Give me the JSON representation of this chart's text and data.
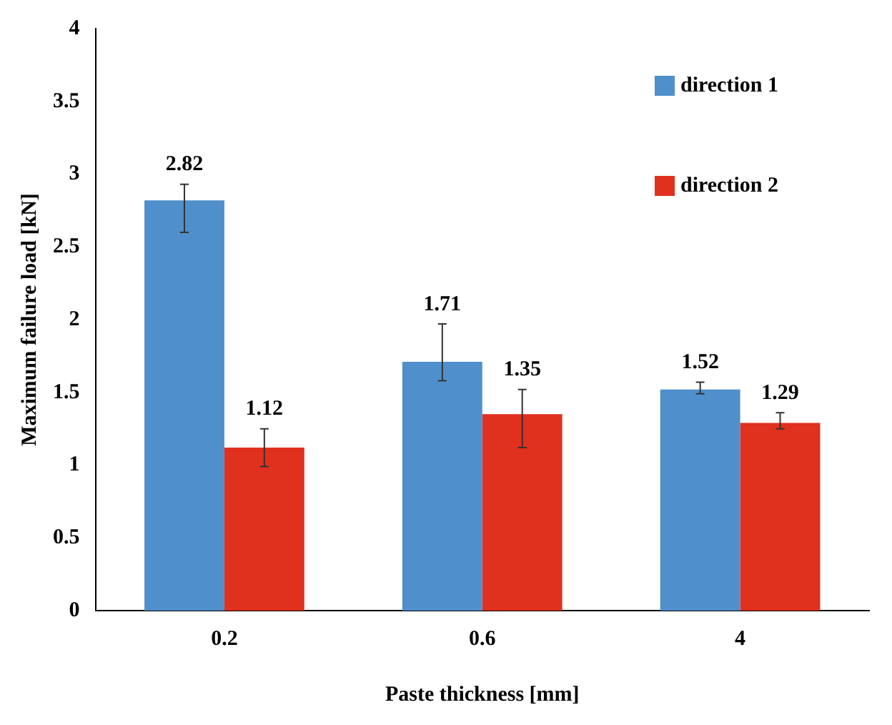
{
  "chart_data": {
    "type": "bar",
    "xlabel": "Paste thickness [mm]",
    "ylabel": "Maximum failure load [kN]",
    "categories": [
      "0.2",
      "0.6",
      "4"
    ],
    "series": [
      {
        "name": "direction 1",
        "color": "#4f8fcb",
        "values": [
          2.82,
          1.71,
          1.52
        ],
        "errors": [
          [
            2.6,
            2.93
          ],
          [
            1.58,
            1.97
          ],
          [
            1.49,
            1.57
          ]
        ]
      },
      {
        "name": "direction 2",
        "color": "#e0301e",
        "values": [
          1.12,
          1.35,
          1.29
        ],
        "errors": [
          [
            0.99,
            1.25
          ],
          [
            1.12,
            1.52
          ],
          [
            1.25,
            1.36
          ]
        ]
      }
    ],
    "ylim": [
      0,
      4
    ],
    "yticks": [
      0,
      0.5,
      1,
      1.5,
      2,
      2.5,
      3,
      3.5,
      4
    ],
    "grid": false,
    "legend": "top right",
    "data_labels": true
  }
}
